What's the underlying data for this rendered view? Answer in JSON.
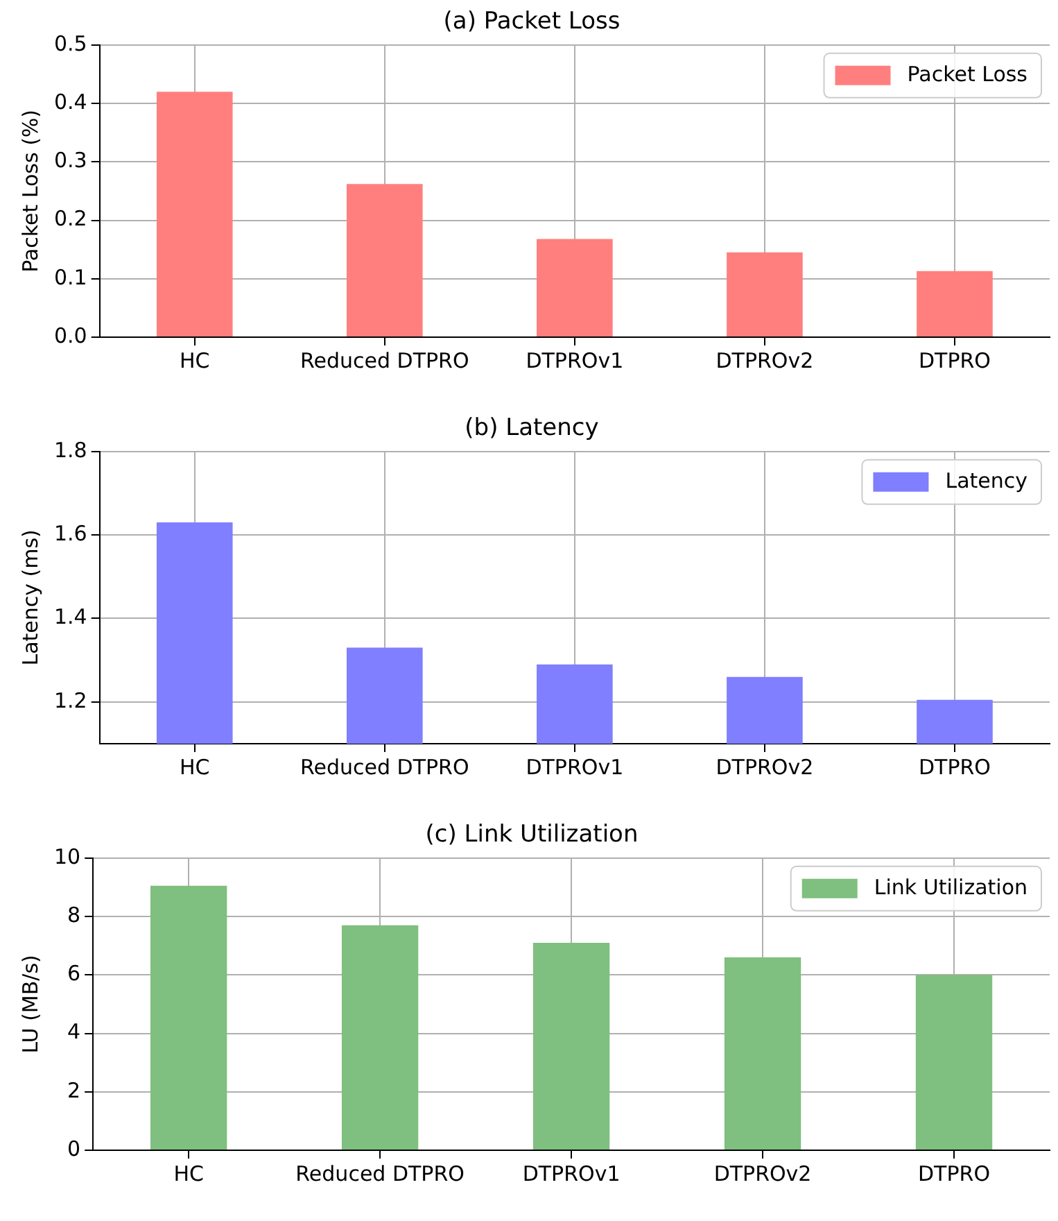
{
  "chart_data": [
    {
      "type": "bar",
      "title": "(a) Packet Loss",
      "ylabel": "Packet Loss (%)",
      "categories": [
        "HC",
        "Reduced DTPRO",
        "DTPROv1",
        "DTPROv2",
        "DTPRO"
      ],
      "series": [
        {
          "name": "Packet Loss",
          "color": "#ff7f7f",
          "values": [
            0.42,
            0.262,
            0.168,
            0.145,
            0.113
          ]
        }
      ],
      "ylim": [
        0,
        0.5
      ],
      "yticks": [
        {
          "value": 0,
          "label": "0.0"
        },
        0.1,
        0.2,
        0.3,
        0.4,
        0.5
      ],
      "grid": true,
      "legend": "top right"
    },
    {
      "type": "bar",
      "title": "(b) Latency",
      "ylabel": "Latency (ms)",
      "categories": [
        "HC",
        "Reduced DTPRO",
        "DTPROv1",
        "DTPROv2",
        "DTPRO"
      ],
      "series": [
        {
          "name": "Latency",
          "color": "#7f7fff",
          "values": [
            1.63,
            1.33,
            1.29,
            1.26,
            1.205
          ]
        }
      ],
      "ylim": [
        1.1,
        1.8
      ],
      "yticks": [
        1.2,
        1.4,
        1.6,
        1.8
      ],
      "grid": true,
      "legend": "top right"
    },
    {
      "type": "bar",
      "title": "(c) Link Utilization",
      "ylabel": "LU (MB/s)",
      "categories": [
        "HC",
        "Reduced DTPRO",
        "DTPROv1",
        "DTPROv2",
        "DTPRO"
      ],
      "series": [
        {
          "name": "Link Utilization",
          "color": "#7fbf7f",
          "values": [
            9.05,
            7.7,
            7.1,
            6.6,
            6.0
          ]
        }
      ],
      "ylim": [
        0,
        10
      ],
      "yticks": [
        0,
        2,
        4,
        6,
        8,
        10
      ],
      "grid": true,
      "legend": "top right"
    }
  ]
}
